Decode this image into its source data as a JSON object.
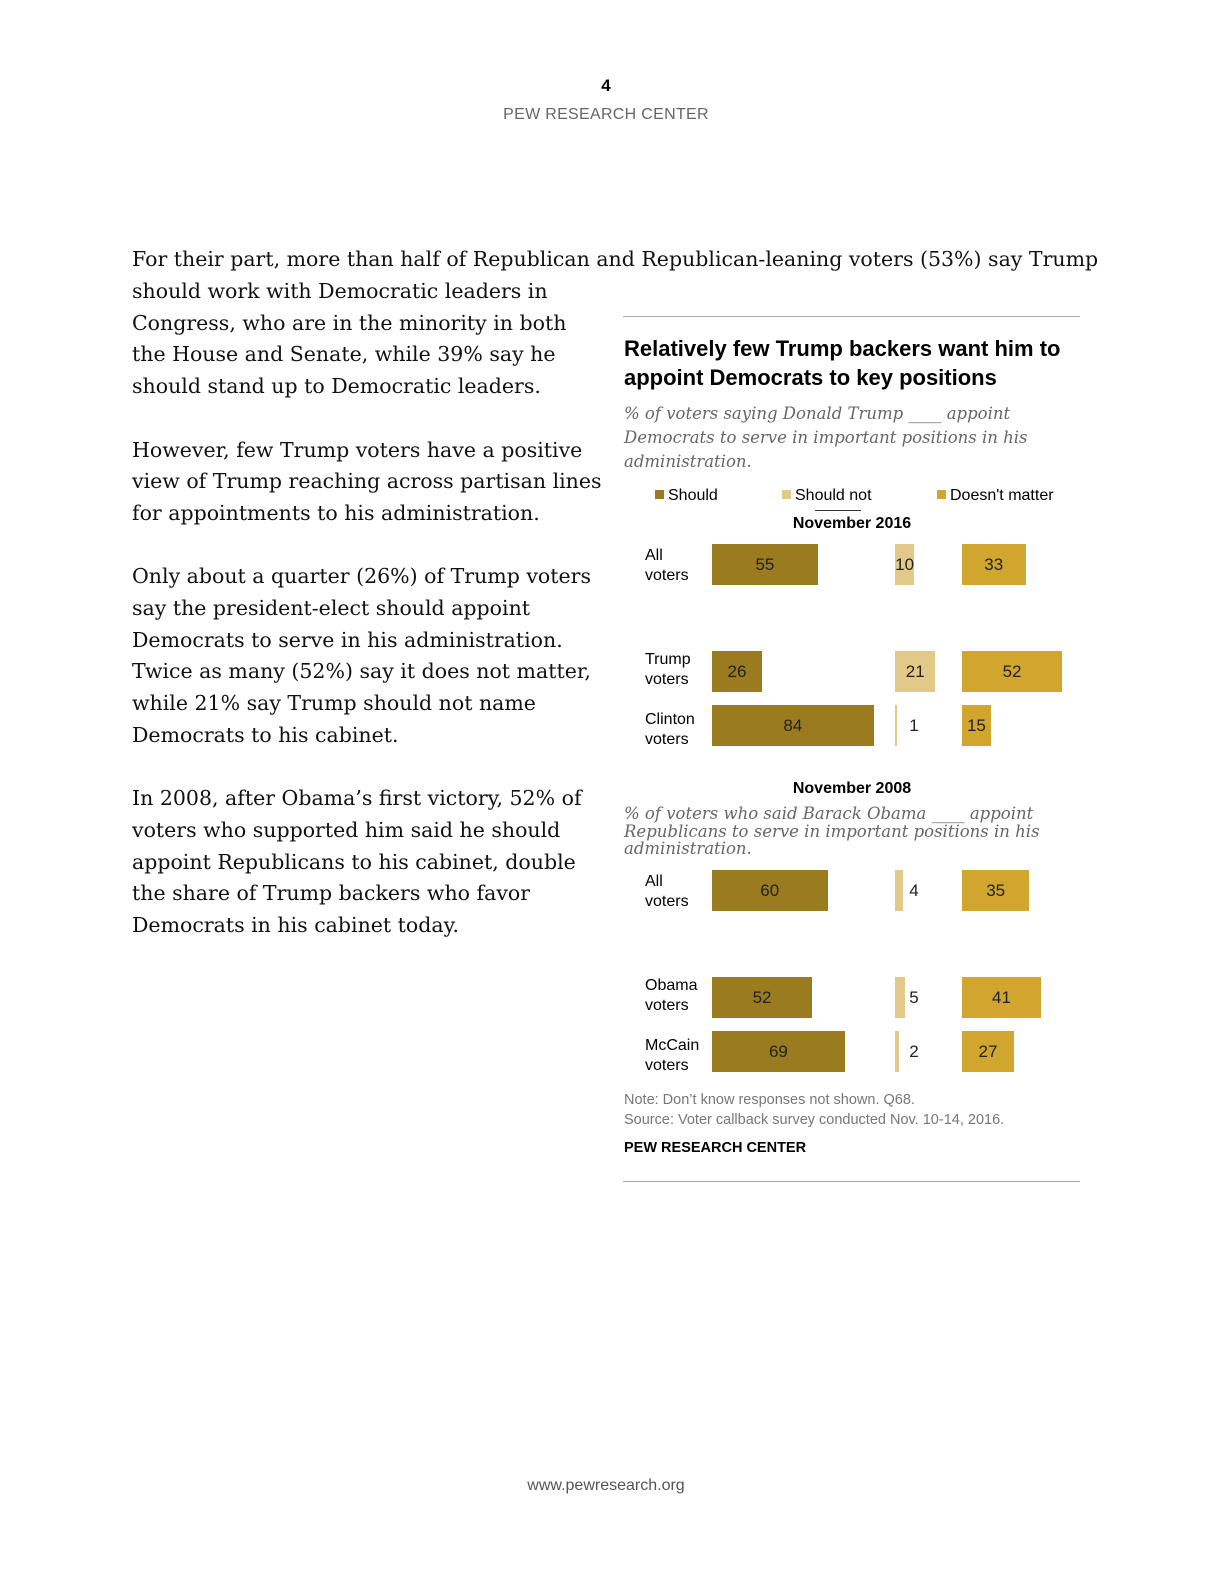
{
  "header": {
    "page_number": "4",
    "org": "PEW RESEARCH CENTER"
  },
  "body": {
    "lead_line": "For their part, more than half of Republican and Republican-leaning voters (53%) say Trump",
    "p1": "should work with Democratic leaders in Congress, who are in the minority in both the House and Senate, while 39% say he should stand up to Democratic leaders.",
    "p2": "However, few Trump voters have a positive view of Trump reaching across partisan lines for appointments to his administration.",
    "p3": "Only about a quarter (26%) of Trump voters say the president-elect should appoint Democrats to serve in his administration. Twice as many (52%) say it does not matter, while 21% say Trump should not name Democrats to his cabinet.",
    "p4": "In 2008, after Obama’s first victory, 52% of voters who supported him said he should appoint Republicans to his cabinet, double the share of Trump backers who favor Democrats in his cabinet today."
  },
  "chart": {
    "title": "Relatively few Trump backers want him to appoint Democrats to key positions",
    "subtitle_2016": "% of voters saying Donald Trump ____ appoint Democrats to serve in important positions in his administration.",
    "subtitle_2008": "% of voters who said Barack Obama ____ appoint Republicans to serve in important positions in his administration.",
    "note": "Note: Don’t know responses not shown. Q68.",
    "source": "Source: Voter callback survey conducted Nov. 10-14, 2016.",
    "credit": "PEW RESEARCH CENTER"
  },
  "chart_data": {
    "type": "bar",
    "title": "Relatively few Trump backers want him to appoint Democrats to key positions",
    "legend": [
      {
        "name": "Should",
        "color": "#9a7b1f"
      },
      {
        "name": "Should not",
        "color": "#e2c98a"
      },
      {
        "name": "Doesn't matter",
        "color": "#d1a62e"
      }
    ],
    "colors": {
      "should": "#9a7b1f",
      "should_not": "#e2c98a",
      "doesnt_matter": "#d1a62e"
    },
    "groups": [
      {
        "name": "November 2016",
        "rows": [
          {
            "label": "All voters",
            "should": 55,
            "should_not": 10,
            "doesnt_matter": 33
          },
          {
            "label": "Trump voters",
            "should": 26,
            "should_not": 21,
            "doesnt_matter": 52
          },
          {
            "label": "Clinton voters",
            "should": 84,
            "should_not": 1,
            "doesnt_matter": 15
          }
        ]
      },
      {
        "name": "November 2008",
        "rows": [
          {
            "label": "All voters",
            "should": 60,
            "should_not": 4,
            "doesnt_matter": 35
          },
          {
            "label": "Obama voters",
            "should": 52,
            "should_not": 5,
            "doesnt_matter": 41
          },
          {
            "label": "McCain voters",
            "should": 69,
            "should_not": 2,
            "doesnt_matter": 27
          }
        ]
      }
    ]
  },
  "footer": {
    "url": "www.pewresearch.org"
  }
}
